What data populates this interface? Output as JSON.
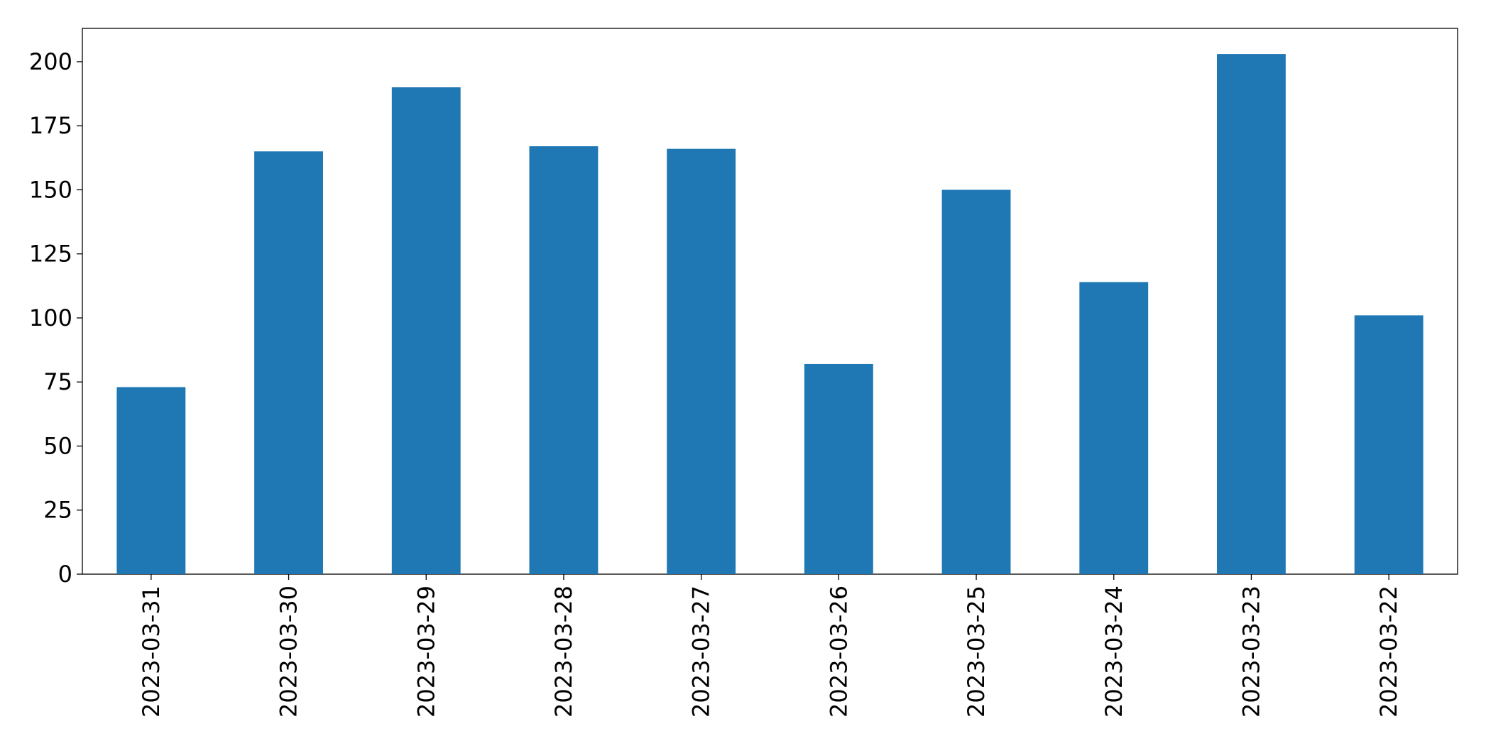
{
  "chart_data": {
    "type": "bar",
    "categories": [
      "2023-03-31",
      "2023-03-30",
      "2023-03-29",
      "2023-03-28",
      "2023-03-27",
      "2023-03-26",
      "2023-03-25",
      "2023-03-24",
      "2023-03-23",
      "2023-03-22"
    ],
    "values": [
      73,
      165,
      190,
      167,
      166,
      82,
      150,
      114,
      203,
      101
    ],
    "color": "#1f77b4",
    "ylim": [
      0,
      213
    ],
    "yticks": [
      0,
      25,
      50,
      75,
      100,
      125,
      150,
      175,
      200
    ],
    "grid": false
  }
}
